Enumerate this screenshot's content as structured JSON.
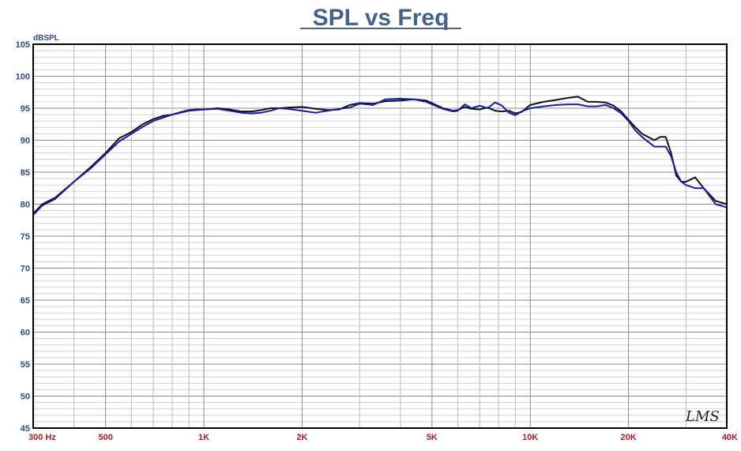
{
  "chart_data": {
    "type": "line",
    "title": "SPL vs Freq",
    "ylabel": "dBSPL",
    "xscale": "log",
    "xlim": [
      300,
      40000
    ],
    "ylim": [
      45,
      105
    ],
    "grid": true,
    "legend": "none",
    "watermark": "LMS",
    "yticks": [
      {
        "value": 105,
        "label": "105"
      },
      {
        "value": 100,
        "label": "100"
      },
      {
        "value": 95,
        "label": "95"
      },
      {
        "value": 90,
        "label": "90"
      },
      {
        "value": 85,
        "label": "85"
      },
      {
        "value": 80,
        "label": "80"
      },
      {
        "value": 75,
        "label": "75"
      },
      {
        "value": 70,
        "label": "70"
      },
      {
        "value": 65,
        "label": "65"
      },
      {
        "value": 60,
        "label": "60"
      },
      {
        "value": 55,
        "label": "55"
      },
      {
        "value": 50,
        "label": "50"
      },
      {
        "value": 45,
        "label": "45"
      }
    ],
    "xticks": [
      {
        "value": 300,
        "label": "300  Hz"
      },
      {
        "value": 500,
        "label": "500"
      },
      {
        "value": 1000,
        "label": "1K"
      },
      {
        "value": 2000,
        "label": "2K"
      },
      {
        "value": 5000,
        "label": "5K"
      },
      {
        "value": 10000,
        "label": "10K"
      },
      {
        "value": 20000,
        "label": "20K"
      },
      {
        "value": 40000,
        "label": "40K"
      }
    ],
    "series": [
      {
        "color": "#111111",
        "x": [
          300,
          320,
          350,
          400,
          450,
          500,
          550,
          600,
          650,
          700,
          750,
          800,
          850,
          900,
          950,
          1000,
          1100,
          1200,
          1300,
          1400,
          1500,
          1600,
          1700,
          1800,
          2000,
          2200,
          2400,
          2600,
          2800,
          3000,
          3300,
          3600,
          4000,
          4400,
          4800,
          5000,
          5400,
          5800,
          6000,
          6300,
          6600,
          7000,
          7400,
          7800,
          8200,
          8600,
          9000,
          9400,
          10000,
          11000,
          12000,
          13000,
          14000,
          15000,
          16000,
          17000,
          18000,
          19000,
          20000,
          21000,
          22000,
          24000,
          25000,
          26000,
          27000,
          28000,
          29000,
          30000,
          32000,
          34000,
          37000,
          40000
        ],
        "values": [
          78.5,
          80.0,
          81.0,
          83.5,
          85.8,
          88.0,
          90.3,
          91.3,
          92.5,
          93.3,
          93.8,
          94.0,
          94.4,
          94.7,
          94.8,
          94.8,
          95.0,
          94.8,
          94.5,
          94.5,
          94.7,
          95.0,
          95.0,
          95.1,
          95.2,
          94.9,
          94.7,
          94.8,
          95.5,
          95.8,
          95.7,
          96.1,
          96.2,
          96.4,
          96.2,
          95.8,
          95.0,
          94.6,
          94.7,
          95.2,
          94.9,
          94.8,
          95.1,
          94.6,
          94.5,
          94.6,
          94.2,
          94.4,
          95.5,
          96.0,
          96.3,
          96.6,
          96.8,
          96.0,
          96.0,
          95.9,
          95.4,
          94.5,
          93.2,
          92.0,
          91.0,
          90.0,
          90.5,
          90.5,
          88.0,
          84.5,
          83.5,
          83.5,
          84.2,
          82.5,
          80.5,
          80.0
        ]
      },
      {
        "color": "#1a1aa8",
        "x": [
          300,
          320,
          350,
          400,
          450,
          500,
          550,
          600,
          650,
          700,
          750,
          800,
          850,
          900,
          950,
          1000,
          1100,
          1200,
          1300,
          1400,
          1500,
          1600,
          1700,
          1800,
          2000,
          2200,
          2400,
          2600,
          2800,
          3000,
          3300,
          3600,
          4000,
          4400,
          4800,
          5000,
          5400,
          5800,
          6000,
          6300,
          6600,
          7000,
          7400,
          7800,
          8200,
          8600,
          9000,
          9400,
          10000,
          11000,
          12000,
          13000,
          14000,
          15000,
          16000,
          17000,
          18000,
          19000,
          20000,
          21000,
          22000,
          24000,
          25000,
          26000,
          27000,
          28000,
          29000,
          30000,
          32000,
          34000,
          37000,
          40000
        ],
        "values": [
          78.3,
          79.8,
          80.8,
          83.5,
          85.6,
          87.8,
          89.8,
          91.0,
          92.1,
          93.0,
          93.5,
          94.0,
          94.3,
          94.6,
          94.7,
          94.8,
          94.9,
          94.6,
          94.3,
          94.2,
          94.3,
          94.6,
          95.0,
          94.9,
          94.6,
          94.3,
          94.6,
          94.9,
          95.1,
          95.7,
          95.5,
          96.4,
          96.5,
          96.4,
          96.0,
          95.6,
          94.9,
          94.5,
          94.6,
          95.6,
          95.0,
          95.4,
          95.0,
          95.9,
          95.4,
          94.3,
          93.9,
          94.5,
          95.0,
          95.3,
          95.5,
          95.6,
          95.6,
          95.3,
          95.3,
          95.5,
          95.0,
          94.2,
          93.0,
          91.5,
          90.5,
          89.0,
          89.0,
          89.0,
          87.5,
          85.0,
          83.5,
          83.0,
          82.5,
          82.5,
          80.0,
          79.5
        ]
      }
    ]
  }
}
